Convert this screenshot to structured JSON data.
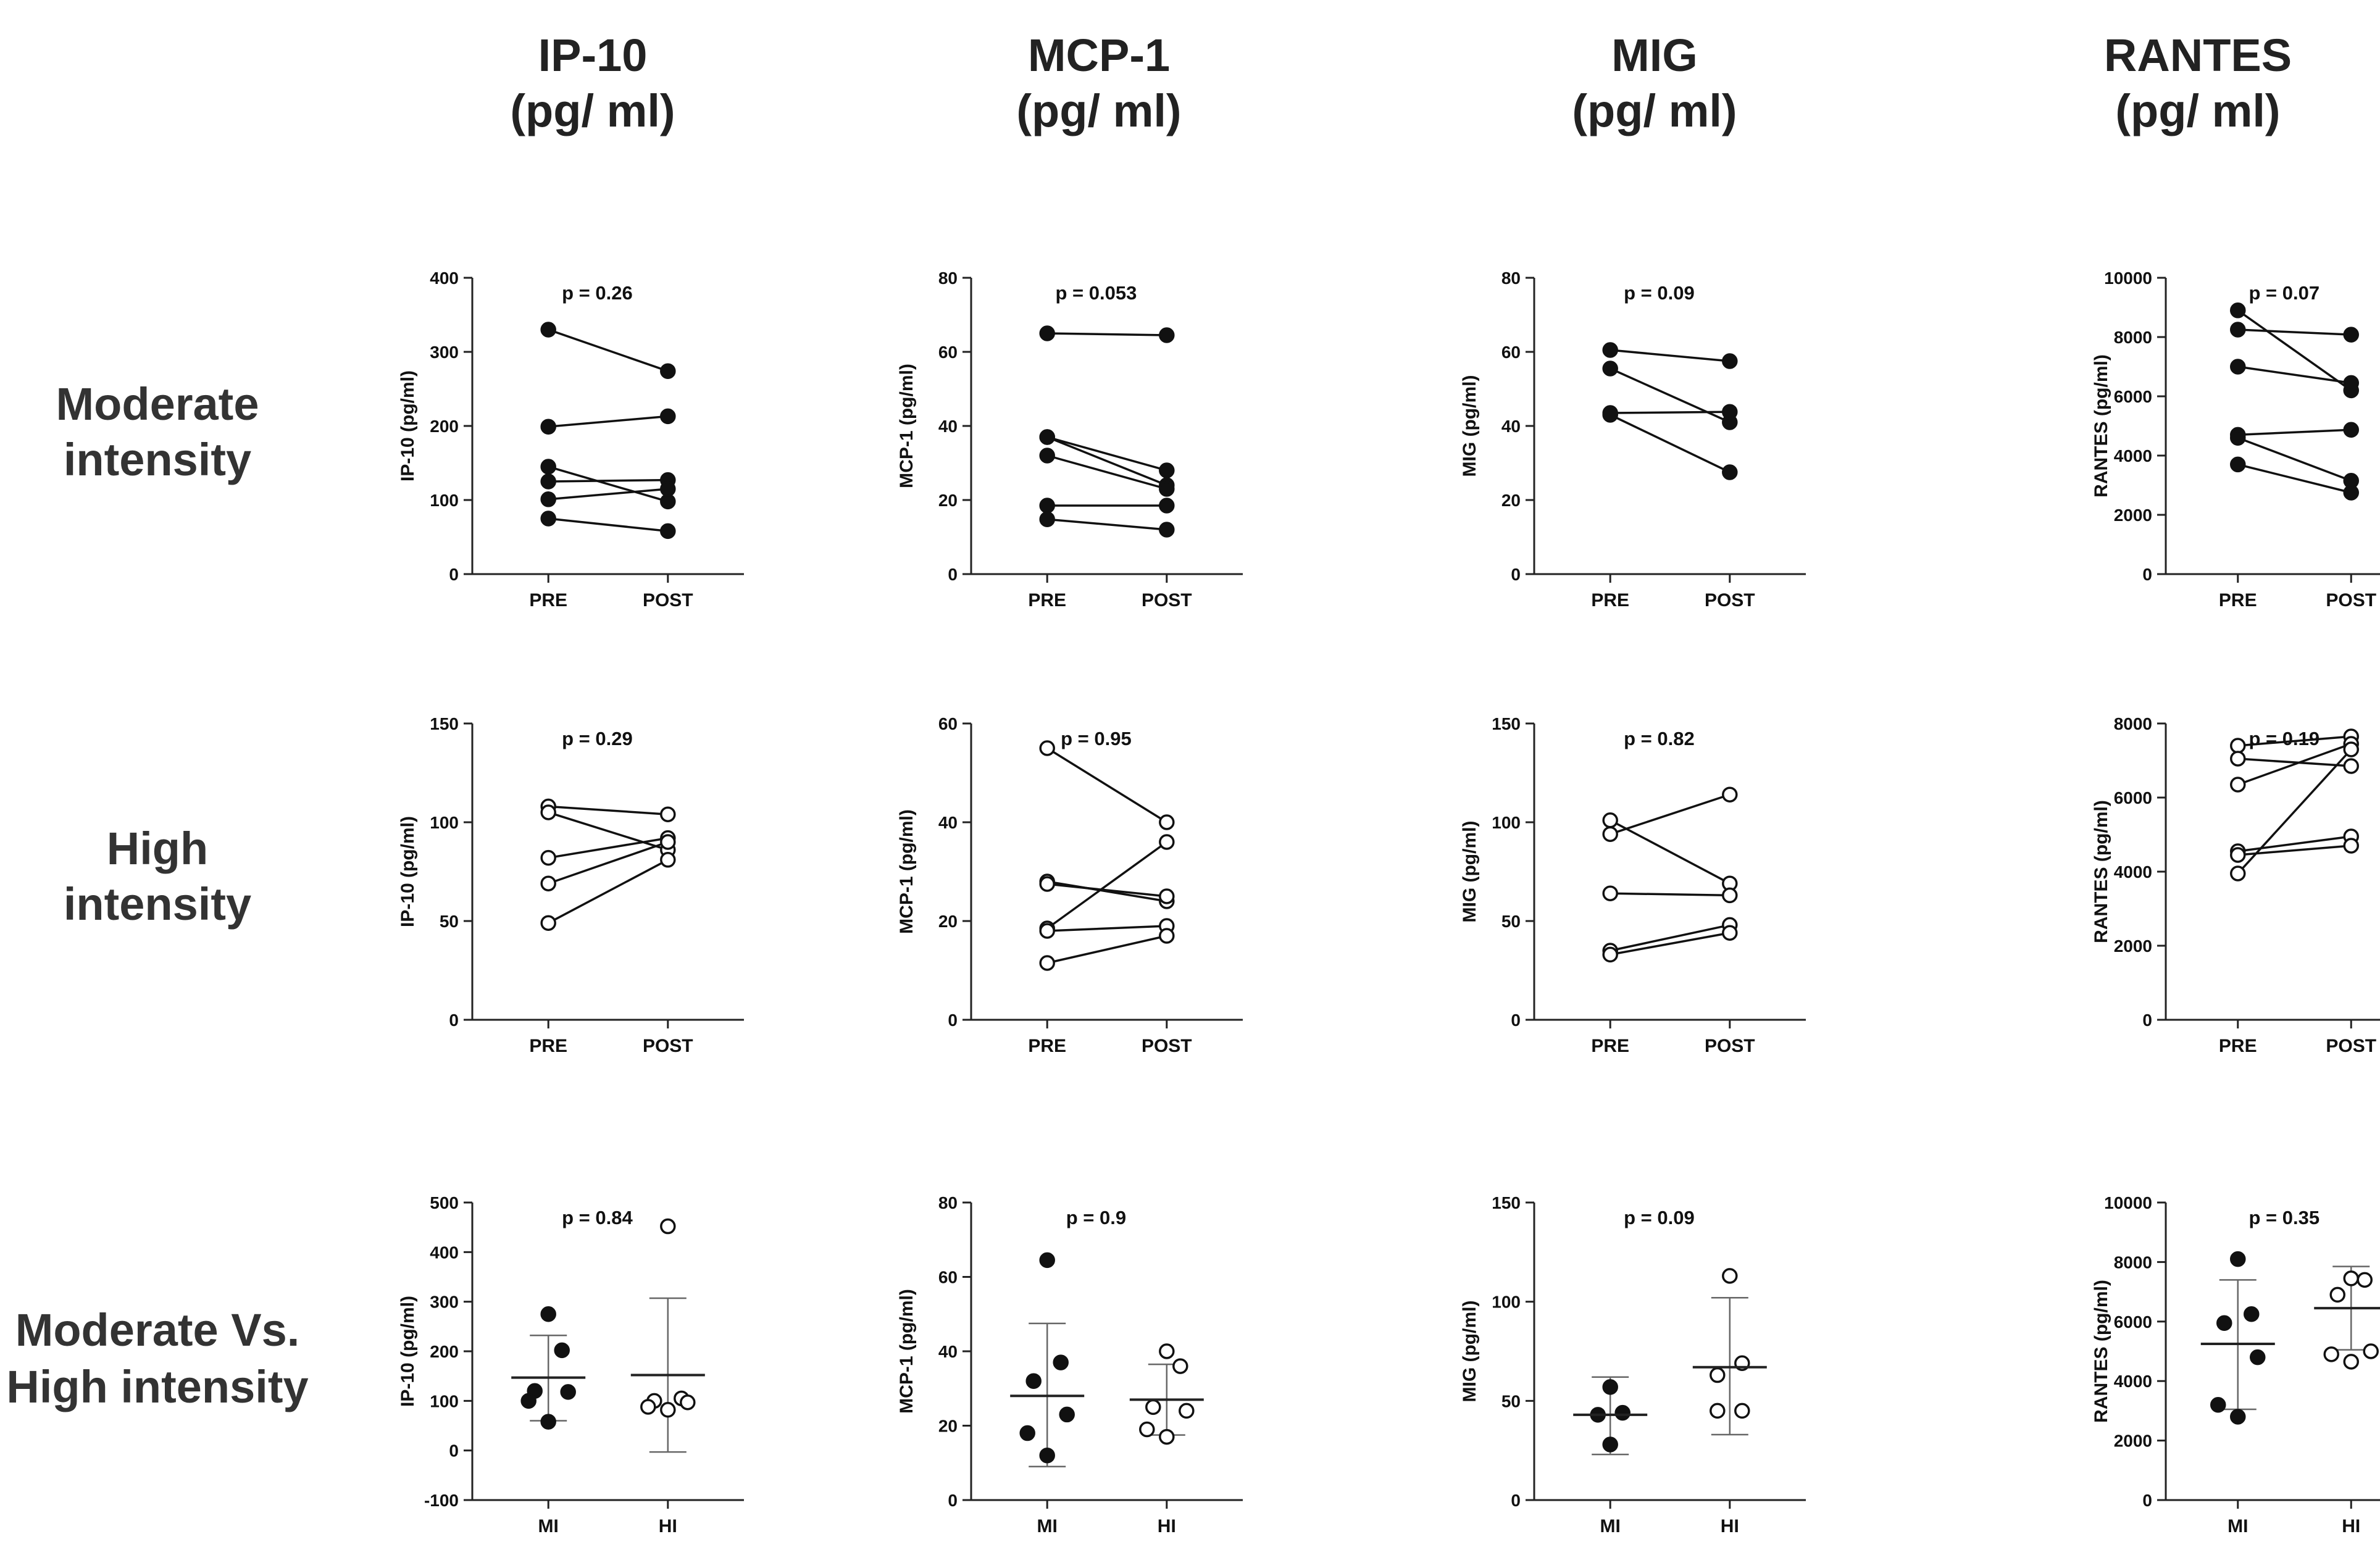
{
  "column_titles": [
    {
      "name": "IP-10",
      "unit": "(pg/ ml)"
    },
    {
      "name": "MCP-1",
      "unit": "(pg/ ml)"
    },
    {
      "name": "MIG",
      "unit": "(pg/ ml)"
    },
    {
      "name": "RANTES",
      "unit": "(pg/ ml)"
    }
  ],
  "row_titles": [
    {
      "line1": "Moderate",
      "line2": "intensity"
    },
    {
      "line1": "High",
      "line2": "intensity"
    },
    {
      "line1": "Moderate Vs.",
      "line2": "High intensity"
    }
  ],
  "colors": {
    "marker": "#111111",
    "line": "#111111",
    "error_bar": "#666666"
  },
  "chart_data": [
    {
      "type": "paired-line",
      "row": 0,
      "col": 0,
      "ylabel": "IP-10 (pg/ml)",
      "categories": [
        "PRE",
        "POST"
      ],
      "ylim": [
        0,
        400
      ],
      "yticks": [
        0,
        100,
        200,
        300,
        400
      ],
      "p_value": "p = 0.26",
      "marker": "filled",
      "series": [
        {
          "values": [
            330,
            274
          ]
        },
        {
          "values": [
            199,
            213
          ]
        },
        {
          "values": [
            145,
            98
          ]
        },
        {
          "values": [
            125,
            127
          ]
        },
        {
          "values": [
            101,
            115
          ]
        },
        {
          "values": [
            75,
            58
          ]
        }
      ]
    },
    {
      "type": "paired-line",
      "row": 0,
      "col": 1,
      "ylabel": "MCP-1 (pg/ml)",
      "categories": [
        "PRE",
        "POST"
      ],
      "ylim": [
        0,
        80
      ],
      "yticks": [
        0,
        20,
        40,
        60,
        80
      ],
      "p_value": "p = 0.053",
      "marker": "filled",
      "series": [
        {
          "values": [
            65,
            64.5
          ]
        },
        {
          "values": [
            37,
            28
          ]
        },
        {
          "values": [
            37,
            24
          ]
        },
        {
          "values": [
            32,
            23
          ]
        },
        {
          "values": [
            18.5,
            18.5
          ]
        },
        {
          "values": [
            14.8,
            12
          ]
        }
      ]
    },
    {
      "type": "paired-line",
      "row": 0,
      "col": 2,
      "ylabel": "MIG (pg/ml)",
      "categories": [
        "PRE",
        "POST"
      ],
      "ylim": [
        0,
        80
      ],
      "yticks": [
        0,
        20,
        40,
        60,
        80
      ],
      "p_value": "p = 0.09",
      "marker": "filled",
      "series": [
        {
          "values": [
            60.5,
            57.5
          ]
        },
        {
          "values": [
            55.5,
            41
          ]
        },
        {
          "values": [
            43.5,
            43.8
          ]
        },
        {
          "values": [
            43,
            27.5
          ]
        }
      ]
    },
    {
      "type": "paired-line",
      "row": 0,
      "col": 3,
      "ylabel": "RANTES (pg/ml)",
      "categories": [
        "PRE",
        "POST"
      ],
      "ylim": [
        0,
        10000
      ],
      "yticks": [
        0,
        2000,
        4000,
        6000,
        8000,
        10000
      ],
      "p_value": "p = 0.07",
      "marker": "filled",
      "series": [
        {
          "values": [
            8900,
            6200
          ]
        },
        {
          "values": [
            8250,
            8080
          ]
        },
        {
          "values": [
            7000,
            6450
          ]
        },
        {
          "values": [
            4700,
            4870
          ]
        },
        {
          "values": [
            4600,
            3150
          ]
        },
        {
          "values": [
            3700,
            2750
          ]
        }
      ]
    },
    {
      "type": "paired-line",
      "row": 1,
      "col": 0,
      "ylabel": "IP-10 (pg/ml)",
      "categories": [
        "PRE",
        "POST"
      ],
      "ylim": [
        0,
        150
      ],
      "yticks": [
        0,
        50,
        100,
        150
      ],
      "p_value": "p = 0.29",
      "marker": "open",
      "series": [
        {
          "values": [
            108,
            104
          ]
        },
        {
          "values": [
            105,
            86
          ]
        },
        {
          "values": [
            82,
            92
          ]
        },
        {
          "values": [
            69,
            90
          ]
        },
        {
          "values": [
            49,
            81
          ]
        }
      ]
    },
    {
      "type": "paired-line",
      "row": 1,
      "col": 1,
      "ylabel": "MCP-1 (pg/ml)",
      "categories": [
        "PRE",
        "POST"
      ],
      "ylim": [
        0,
        60
      ],
      "yticks": [
        0,
        20,
        40,
        60
      ],
      "p_value": "p = 0.95",
      "marker": "open",
      "series": [
        {
          "values": [
            55,
            40
          ]
        },
        {
          "values": [
            28,
            24
          ]
        },
        {
          "values": [
            27.5,
            25
          ]
        },
        {
          "values": [
            18.5,
            36
          ]
        },
        {
          "values": [
            18,
            19
          ]
        },
        {
          "values": [
            11.5,
            17
          ]
        }
      ]
    },
    {
      "type": "paired-line",
      "row": 1,
      "col": 2,
      "ylabel": "MIG (pg/ml)",
      "categories": [
        "PRE",
        "POST"
      ],
      "ylim": [
        0,
        150
      ],
      "yticks": [
        0,
        50,
        100,
        150
      ],
      "p_value": "p = 0.82",
      "marker": "open",
      "series": [
        {
          "values": [
            101,
            69
          ]
        },
        {
          "values": [
            94,
            114
          ]
        },
        {
          "values": [
            64,
            63
          ]
        },
        {
          "values": [
            35,
            48
          ]
        },
        {
          "values": [
            33,
            44
          ]
        }
      ]
    },
    {
      "type": "paired-line",
      "row": 1,
      "col": 3,
      "ylabel": "RANTES (pg/ml)",
      "categories": [
        "PRE",
        "POST"
      ],
      "ylim": [
        0,
        8000
      ],
      "yticks": [
        0,
        2000,
        4000,
        6000,
        8000
      ],
      "p_value": "p = 0.19",
      "marker": "open",
      "series": [
        {
          "values": [
            7400,
            7650
          ]
        },
        {
          "values": [
            7050,
            6850
          ]
        },
        {
          "values": [
            6350,
            7450
          ]
        },
        {
          "values": [
            4550,
            4950
          ]
        },
        {
          "values": [
            4450,
            4700
          ]
        },
        {
          "values": [
            3950,
            7300
          ]
        }
      ]
    },
    {
      "type": "scatter-mean-sd",
      "row": 2,
      "col": 0,
      "ylabel": "IP-10 (pg/ml)",
      "categories": [
        "MI",
        "HI"
      ],
      "ylim": [
        -100,
        500
      ],
      "yticks": [
        -100,
        0,
        100,
        200,
        300,
        400,
        500
      ],
      "p_value": "p = 0.84",
      "groups": [
        {
          "name": "MI",
          "marker": "filled",
          "points": [
            275,
            202,
            120,
            118,
            100,
            58
          ],
          "mean": 147,
          "sd_low": 60,
          "sd_high": 232
        },
        {
          "name": "HI",
          "marker": "open",
          "points": [
            452,
            105,
            100,
            97,
            88,
            82
          ],
          "mean": 152,
          "sd_low": -3,
          "sd_high": 307
        }
      ]
    },
    {
      "type": "scatter-mean-sd",
      "row": 2,
      "col": 1,
      "ylabel": "MCP-1 (pg/ml)",
      "categories": [
        "MI",
        "HI"
      ],
      "ylim": [
        0,
        80
      ],
      "yticks": [
        0,
        20,
        40,
        60,
        80
      ],
      "p_value": "p = 0.9",
      "groups": [
        {
          "name": "MI",
          "marker": "filled",
          "points": [
            64.5,
            37,
            32,
            23,
            18,
            12
          ],
          "mean": 28,
          "sd_low": 9,
          "sd_high": 47.5
        },
        {
          "name": "HI",
          "marker": "open",
          "points": [
            40,
            36,
            25,
            24,
            19,
            17
          ],
          "mean": 27,
          "sd_low": 17.5,
          "sd_high": 36.5
        }
      ]
    },
    {
      "type": "scatter-mean-sd",
      "row": 2,
      "col": 2,
      "ylabel": "MIG (pg/ml)",
      "categories": [
        "MI",
        "HI"
      ],
      "ylim": [
        0,
        150
      ],
      "yticks": [
        0,
        50,
        100,
        150
      ],
      "p_value": "p = 0.09",
      "groups": [
        {
          "name": "MI",
          "marker": "filled",
          "points": [
            57,
            44,
            43,
            28
          ],
          "mean": 43,
          "sd_low": 23,
          "sd_high": 62
        },
        {
          "name": "HI",
          "marker": "open",
          "points": [
            113,
            69,
            63,
            45,
            45
          ],
          "mean": 67,
          "sd_low": 33,
          "sd_high": 102
        }
      ]
    },
    {
      "type": "scatter-mean-sd",
      "row": 2,
      "col": 3,
      "ylabel": "RANTES (pg/ml)",
      "categories": [
        "MI",
        "HI"
      ],
      "ylim": [
        0,
        10000
      ],
      "yticks": [
        0,
        2000,
        4000,
        6000,
        8000,
        10000
      ],
      "p_value": "p = 0.35",
      "groups": [
        {
          "name": "MI",
          "marker": "filled",
          "points": [
            8100,
            6250,
            5950,
            4800,
            3200,
            2800
          ],
          "mean": 5250,
          "sd_low": 3050,
          "sd_high": 7400
        },
        {
          "name": "HI",
          "marker": "open",
          "points": [
            7450,
            7400,
            6900,
            5000,
            4900,
            4650
          ],
          "mean": 6450,
          "sd_low": 5050,
          "sd_high": 7850
        }
      ]
    }
  ]
}
